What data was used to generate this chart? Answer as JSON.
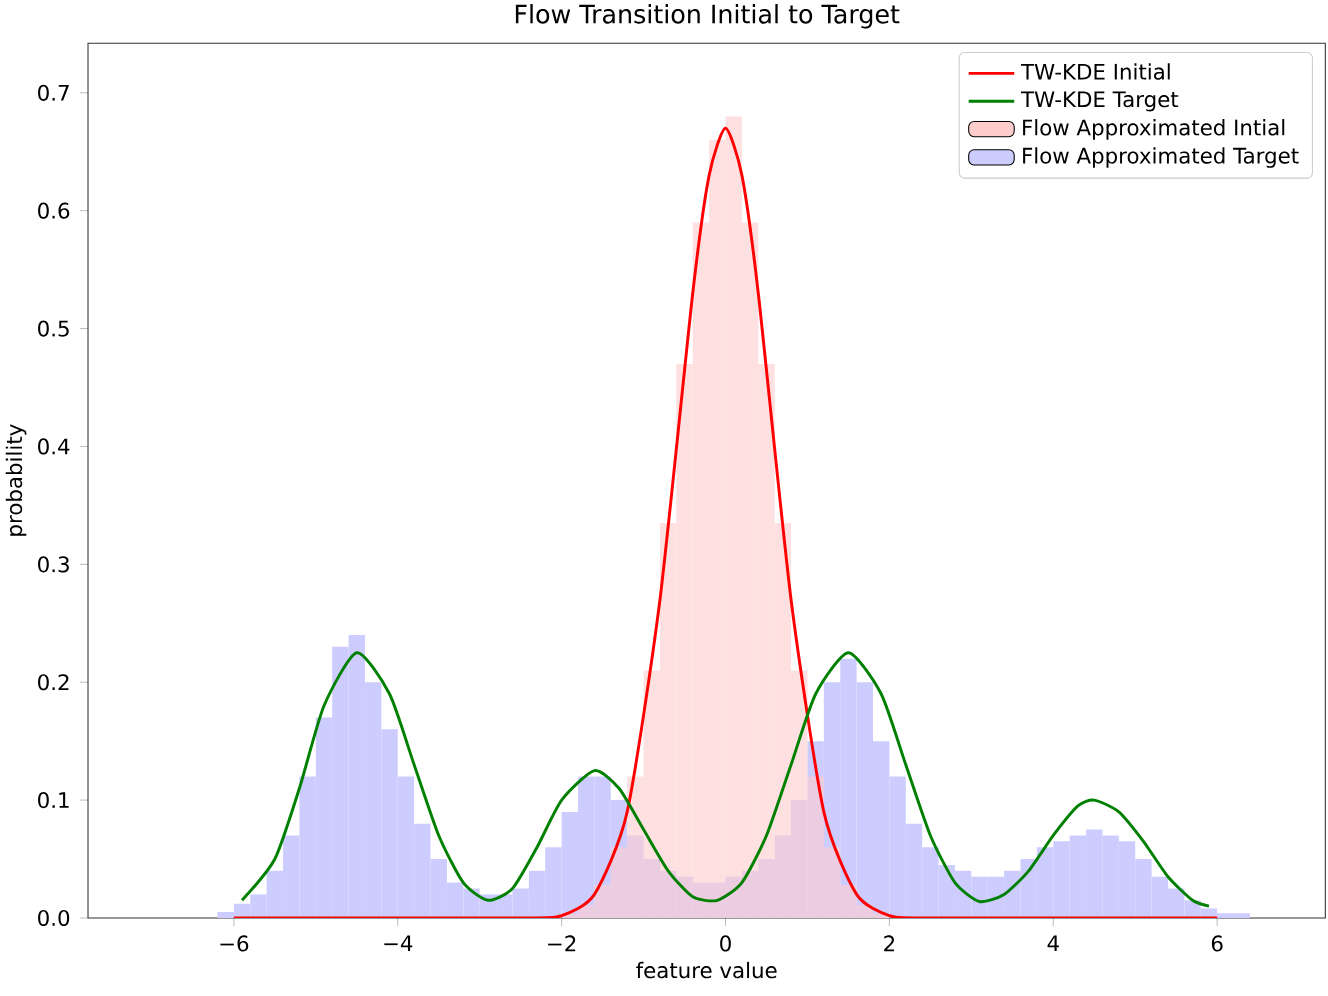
{
  "chart_data": {
    "type": "histogram",
    "title": "Flow Transition Initial to Target",
    "xlabel": "feature value",
    "ylabel": "probability",
    "xlim": [
      -7.78,
      7.32
    ],
    "ylim": [
      0,
      0.742
    ],
    "xticks": [
      {
        "value": -6,
        "label": "−6"
      },
      {
        "value": -4,
        "label": "−4"
      },
      {
        "value": -2,
        "label": "−2"
      },
      0,
      2,
      4,
      6
    ],
    "yticks": [
      {
        "value": 0,
        "label": "0.0"
      },
      0.1,
      0.2,
      0.3,
      0.4,
      0.5,
      0.6,
      0.7
    ],
    "legend": "top right",
    "grid": false,
    "series": [
      {
        "name": "TW-KDE Initial",
        "type": "line",
        "color": "#ff0000",
        "x": [
          -6,
          -2.5,
          -2,
          -1.6,
          -1.2,
          -0.8,
          -0.4,
          -0.2,
          0,
          0.2,
          0.4,
          0.8,
          1.2,
          1.6,
          2,
          2.5,
          6
        ],
        "values": [
          0,
          0,
          0.002,
          0.02,
          0.09,
          0.27,
          0.53,
          0.63,
          0.67,
          0.63,
          0.53,
          0.27,
          0.09,
          0.02,
          0.002,
          0,
          0
        ]
      },
      {
        "name": "TW-KDE Target",
        "type": "line",
        "color": "#008000",
        "x": [
          -5.9,
          -5.5,
          -5.2,
          -4.9,
          -4.5,
          -4.1,
          -3.8,
          -3.5,
          -3.2,
          -2.9,
          -2.6,
          -2.3,
          -2.0,
          -1.6,
          -1.3,
          -1.0,
          -0.7,
          -0.4,
          -0.1,
          0.2,
          0.5,
          0.8,
          1.1,
          1.5,
          1.9,
          2.2,
          2.5,
          2.8,
          3.1,
          3.4,
          3.7,
          4.0,
          4.3,
          4.5,
          4.8,
          5.1,
          5.4,
          5.7,
          5.9
        ],
        "values": [
          0.015,
          0.05,
          0.11,
          0.18,
          0.225,
          0.19,
          0.13,
          0.07,
          0.03,
          0.015,
          0.025,
          0.06,
          0.1,
          0.125,
          0.11,
          0.075,
          0.04,
          0.018,
          0.015,
          0.03,
          0.07,
          0.13,
          0.19,
          0.225,
          0.19,
          0.13,
          0.07,
          0.03,
          0.014,
          0.02,
          0.04,
          0.07,
          0.095,
          0.1,
          0.09,
          0.065,
          0.035,
          0.015,
          0.01
        ]
      },
      {
        "name": "Flow Approximated Intial",
        "type": "histogram",
        "color": "#ffcccc",
        "bins": [
          -2.0,
          -1.8,
          -1.6,
          -1.4,
          -1.2,
          -1.0,
          -0.8,
          -0.6,
          -0.4,
          -0.2,
          0.0,
          0.2,
          0.4,
          0.6,
          0.8,
          1.0,
          1.2,
          1.4,
          1.6,
          1.8,
          2.0
        ],
        "values": [
          0.004,
          0.011,
          0.028,
          0.06,
          0.12,
          0.21,
          0.335,
          0.47,
          0.59,
          0.66,
          0.68,
          0.59,
          0.47,
          0.335,
          0.21,
          0.12,
          0.06,
          0.028,
          0.011,
          0.004
        ]
      },
      {
        "name": "Flow Approximated Target",
        "type": "histogram",
        "color": "#ccccff",
        "bins": [
          -6.2,
          -6.0,
          -5.8,
          -5.6,
          -5.4,
          -5.2,
          -5.0,
          -4.8,
          -4.6,
          -4.4,
          -4.2,
          -4.0,
          -3.8,
          -3.6,
          -3.4,
          -3.2,
          -3.0,
          -2.8,
          -2.6,
          -2.4,
          -2.2,
          -2.0,
          -1.8,
          -1.6,
          -1.4,
          -1.2,
          -1.0,
          -0.8,
          -0.6,
          -0.4,
          -0.2,
          0.0,
          0.2,
          0.4,
          0.6,
          0.8,
          1.0,
          1.2,
          1.4,
          1.6,
          1.8,
          2.0,
          2.2,
          2.4,
          2.6,
          2.8,
          3.0,
          3.2,
          3.4,
          3.6,
          3.8,
          4.0,
          4.2,
          4.4,
          4.6,
          4.8,
          5.0,
          5.2,
          5.4,
          5.6,
          5.8,
          6.0,
          6.2,
          6.4
        ],
        "values": [
          0.005,
          0.012,
          0.02,
          0.04,
          0.07,
          0.12,
          0.17,
          0.23,
          0.24,
          0.2,
          0.16,
          0.12,
          0.08,
          0.05,
          0.03,
          0.025,
          0.02,
          0.02,
          0.025,
          0.04,
          0.06,
          0.09,
          0.12,
          0.12,
          0.1,
          0.07,
          0.05,
          0.04,
          0.035,
          0.03,
          0.03,
          0.035,
          0.04,
          0.05,
          0.07,
          0.1,
          0.15,
          0.2,
          0.22,
          0.2,
          0.15,
          0.12,
          0.08,
          0.06,
          0.045,
          0.04,
          0.035,
          0.035,
          0.04,
          0.05,
          0.06,
          0.065,
          0.07,
          0.075,
          0.07,
          0.065,
          0.05,
          0.035,
          0.025,
          0.015,
          0.008,
          0.004,
          0.004
        ]
      }
    ]
  }
}
